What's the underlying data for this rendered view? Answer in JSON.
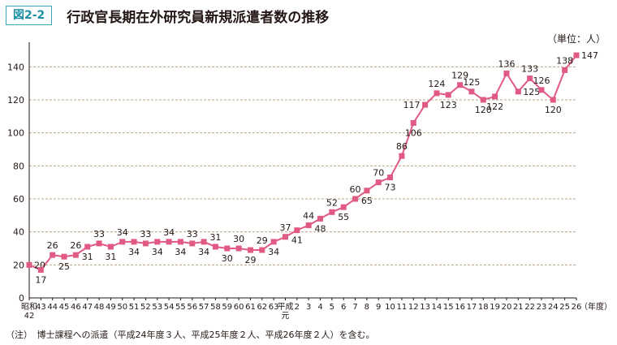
{
  "header": {
    "figure_label": "図2-2",
    "title": "行政官長期在外研究員新規派遣者数の推移"
  },
  "unit": "（単位：人）",
  "note": "（注）　博士課程への派遣（平成24年度３人、平成25年度２人、平成26年度２人）を含む。",
  "x_axis_unit": "（年度）",
  "colors": {
    "series": "#e05a84",
    "grid": "#b9a48a",
    "accent": "#1f8fa6"
  },
  "chart_data": {
    "type": "line",
    "ylim": [
      0,
      150
    ],
    "yticks": [
      0,
      20,
      40,
      60,
      80,
      100,
      120,
      140
    ],
    "grid": true,
    "categories": [
      "昭和\n42",
      "43",
      "44",
      "45",
      "46",
      "47",
      "48",
      "49",
      "50",
      "51",
      "52",
      "53",
      "54",
      "55",
      "56",
      "57",
      "58",
      "59",
      "60",
      "61",
      "62",
      "63",
      "平成\n元",
      "2",
      "3",
      "4",
      "5",
      "6",
      "7",
      "8",
      "9",
      "10",
      "11",
      "12",
      "13",
      "14",
      "15",
      "16",
      "17",
      "18",
      "19",
      "20",
      "21",
      "22",
      "23",
      "24",
      "25",
      "26"
    ],
    "values": [
      20,
      17,
      26,
      25,
      26,
      31,
      33,
      31,
      34,
      34,
      33,
      34,
      34,
      34,
      33,
      34,
      31,
      30,
      30,
      29,
      29,
      34,
      37,
      41,
      44,
      48,
      52,
      55,
      60,
      65,
      70,
      73,
      86,
      106,
      117,
      124,
      123,
      129,
      125,
      120,
      122,
      136,
      125,
      133,
      126,
      120,
      138,
      147
    ],
    "label_positions": [
      "right",
      "below",
      "above",
      "below",
      "above",
      "below",
      "above",
      "below",
      "above",
      "below",
      "above",
      "below",
      "above",
      "below",
      "above",
      "below",
      "above",
      "below",
      "above",
      "below",
      "above",
      "below",
      "above",
      "below",
      "above",
      "below",
      "above",
      "below",
      "above",
      "below",
      "above",
      "below",
      "above",
      "below",
      "left",
      "above",
      "below",
      "above",
      "above",
      "below",
      "below",
      "above",
      "right",
      "above",
      "above",
      "below",
      "above",
      "right"
    ]
  }
}
